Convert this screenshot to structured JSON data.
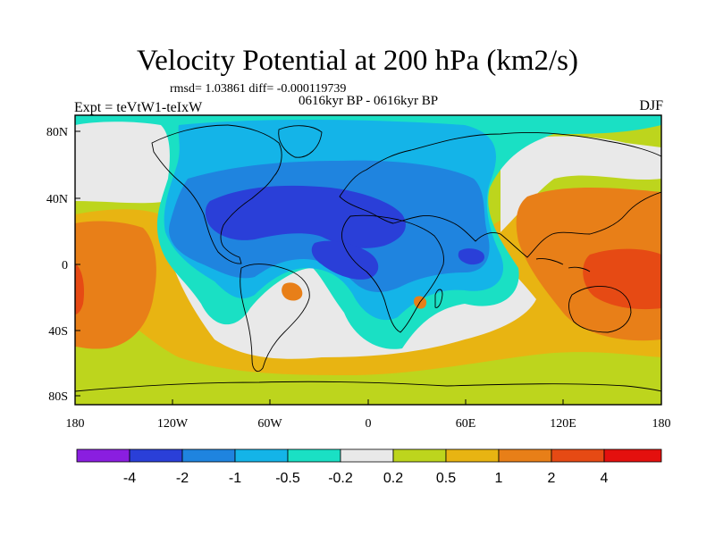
{
  "title": "Velocity Potential at 200 hPa (km2/s)",
  "stats": "rmsd= 1.03861 diff= -0.000119739",
  "period": "0616kyr BP - 0616kyr BP",
  "experiment": "Expt = teVtW1-teIxW",
  "season": "DJF",
  "latitude_labels": [
    "80N",
    "40N",
    "0",
    "40S",
    "80S"
  ],
  "longitude_labels": [
    "180",
    "120W",
    "60W",
    "0",
    "60E",
    "120E",
    "180"
  ],
  "colorbar": {
    "labels": [
      "-4",
      "-2",
      "-1",
      "-0.5",
      "-0.2",
      "0.2",
      "0.5",
      "1",
      "2",
      "4"
    ],
    "colors": [
      "#8a1ee0",
      "#2a3fd8",
      "#1f84df",
      "#14b4e8",
      "#1ae0c4",
      "#e9e9e9",
      "#bdd51d",
      "#e8b412",
      "#e87f18",
      "#e64a14",
      "#e4100e"
    ]
  },
  "field_colors": {
    "neg2": "#2a3fd8",
    "neg1": "#1f84df",
    "neg05": "#14b4e8",
    "neg02": "#1ae0c4",
    "neutral": "#e9e9e9",
    "pos02": "#bdd51d",
    "pos05": "#e8b412",
    "pos1": "#e87f18",
    "pos2": "#e64a14"
  }
}
